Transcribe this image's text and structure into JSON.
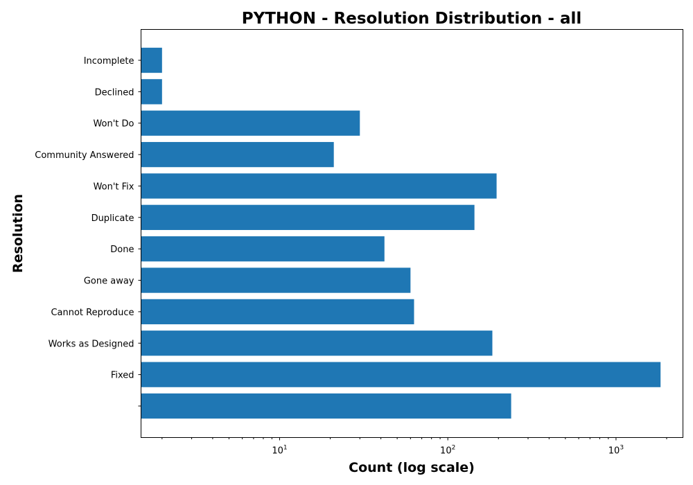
{
  "chart_data": {
    "type": "bar",
    "orientation": "horizontal",
    "title": "PYTHON - Resolution Distribution - all",
    "xlabel": "Count (log scale)",
    "ylabel": "Resolution",
    "x_scale": "log",
    "xlim": [
      1.5,
      2500
    ],
    "x_ticks": [
      {
        "base": "10",
        "exp": "1",
        "value": 10
      },
      {
        "base": "10",
        "exp": "2",
        "value": 100
      },
      {
        "base": "10",
        "exp": "3",
        "value": 1000
      }
    ],
    "categories": [
      "",
      "Fixed",
      "Works as Designed",
      "Cannot Reproduce",
      "Gone away",
      "Done",
      "Duplicate",
      "Won't Fix",
      "Community Answered",
      "Won't Do",
      "Declined",
      "Incomplete"
    ],
    "values": [
      238,
      1840,
      184,
      63,
      60,
      42,
      144,
      195,
      21,
      30,
      2,
      2
    ],
    "bar_color": "#1f77b4",
    "grid": false,
    "legend": "none"
  }
}
